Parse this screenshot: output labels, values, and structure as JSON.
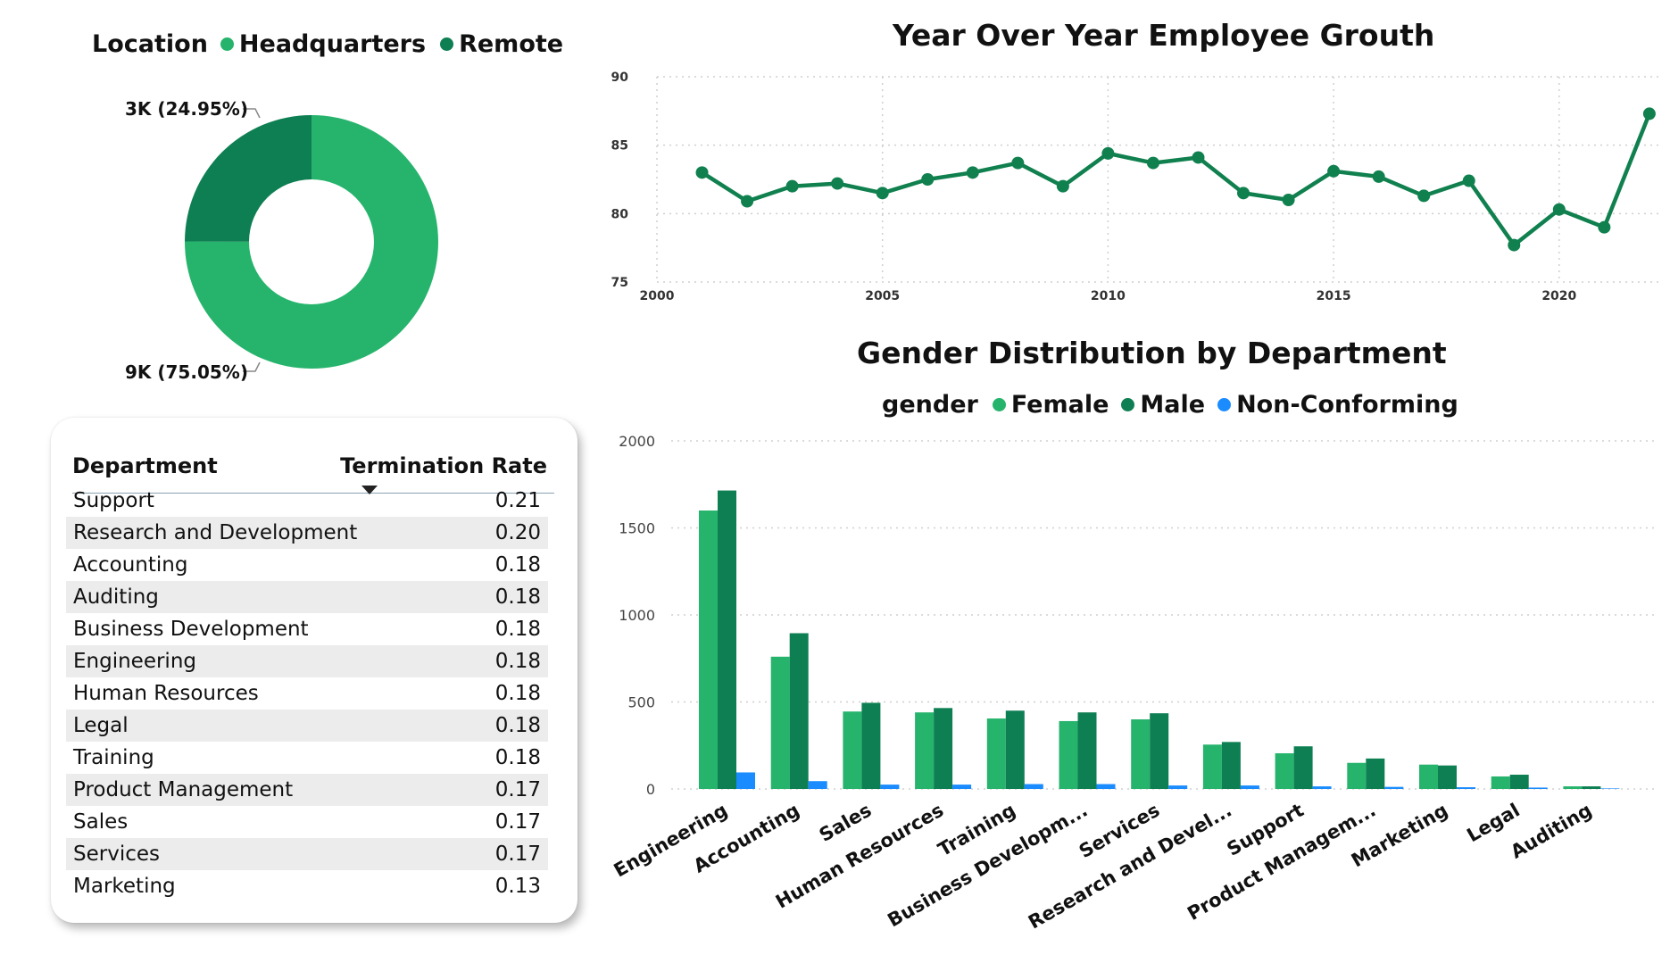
{
  "colors": {
    "headquarters": "#26b46c",
    "remote": "#0e7f53",
    "female": "#26b46c",
    "male": "#0e7f53",
    "non_conforming": "#1a8cff",
    "line": "#10804f"
  },
  "donut": {
    "legend_title": "Location",
    "chart_data": {
      "type": "pie",
      "labels": [
        "Headquarters",
        "Remote"
      ],
      "values": [
        75.05,
        24.95
      ],
      "data_labels": [
        "9K (75.05%)",
        "3K (24.95%)"
      ]
    }
  },
  "table": {
    "headers": {
      "department": "Department",
      "rate": "Termination Rate"
    },
    "sort": "descending",
    "rows": [
      {
        "department": "Support",
        "rate": "0.21"
      },
      {
        "department": "Research and Development",
        "rate": "0.20"
      },
      {
        "department": "Accounting",
        "rate": "0.18"
      },
      {
        "department": "Auditing",
        "rate": "0.18"
      },
      {
        "department": "Business Development",
        "rate": "0.18"
      },
      {
        "department": "Engineering",
        "rate": "0.18"
      },
      {
        "department": "Human Resources",
        "rate": "0.18"
      },
      {
        "department": "Legal",
        "rate": "0.18"
      },
      {
        "department": "Training",
        "rate": "0.18"
      },
      {
        "department": "Product Management",
        "rate": "0.17"
      },
      {
        "department": "Sales",
        "rate": "0.17"
      },
      {
        "department": "Services",
        "rate": "0.17"
      },
      {
        "department": "Marketing",
        "rate": "0.13"
      }
    ]
  },
  "chart_data": [
    {
      "type": "line",
      "title": "Year Over Year Employee Grouth",
      "x": [
        2001,
        2002,
        2003,
        2004,
        2005,
        2006,
        2007,
        2008,
        2009,
        2010,
        2011,
        2012,
        2013,
        2014,
        2015,
        2016,
        2017,
        2018,
        2019,
        2020,
        2021,
        2022
      ],
      "y": [
        83.0,
        80.9,
        82.0,
        82.2,
        81.5,
        82.5,
        83.0,
        83.7,
        82.0,
        84.4,
        83.7,
        84.1,
        81.5,
        81.0,
        83.1,
        82.7,
        81.3,
        82.4,
        77.7,
        80.3,
        79.0,
        87.3
      ],
      "xticks": [
        "2000",
        "2005",
        "2010",
        "2015",
        "2020"
      ],
      "yticks": [
        "75",
        "80",
        "85",
        "90"
      ],
      "xlim": [
        2000,
        2022.2
      ],
      "ylim": [
        75,
        90
      ],
      "grid": true
    },
    {
      "type": "bar",
      "title": "Gender Distribution by Department",
      "legend_title": "gender",
      "categories": [
        "Engineering",
        "Accounting",
        "Sales",
        "Human Resources",
        "Training",
        "Business Developm...",
        "Services",
        "Research and Devel...",
        "Support",
        "Product Managem...",
        "Marketing",
        "Legal",
        "Auditing"
      ],
      "series": [
        {
          "name": "Female",
          "values": [
            1600,
            760,
            445,
            440,
            405,
            390,
            400,
            255,
            205,
            150,
            140,
            72,
            15
          ]
        },
        {
          "name": "Male",
          "values": [
            1715,
            895,
            495,
            465,
            450,
            440,
            435,
            270,
            245,
            175,
            135,
            82,
            15
          ]
        },
        {
          "name": "Non-Conforming",
          "values": [
            95,
            45,
            25,
            25,
            28,
            28,
            20,
            20,
            15,
            12,
            10,
            8,
            3
          ]
        }
      ],
      "yticks": [
        "0",
        "500",
        "1000",
        "1500",
        "2000"
      ],
      "ylim": [
        0,
        2000
      ],
      "grid": true
    }
  ]
}
